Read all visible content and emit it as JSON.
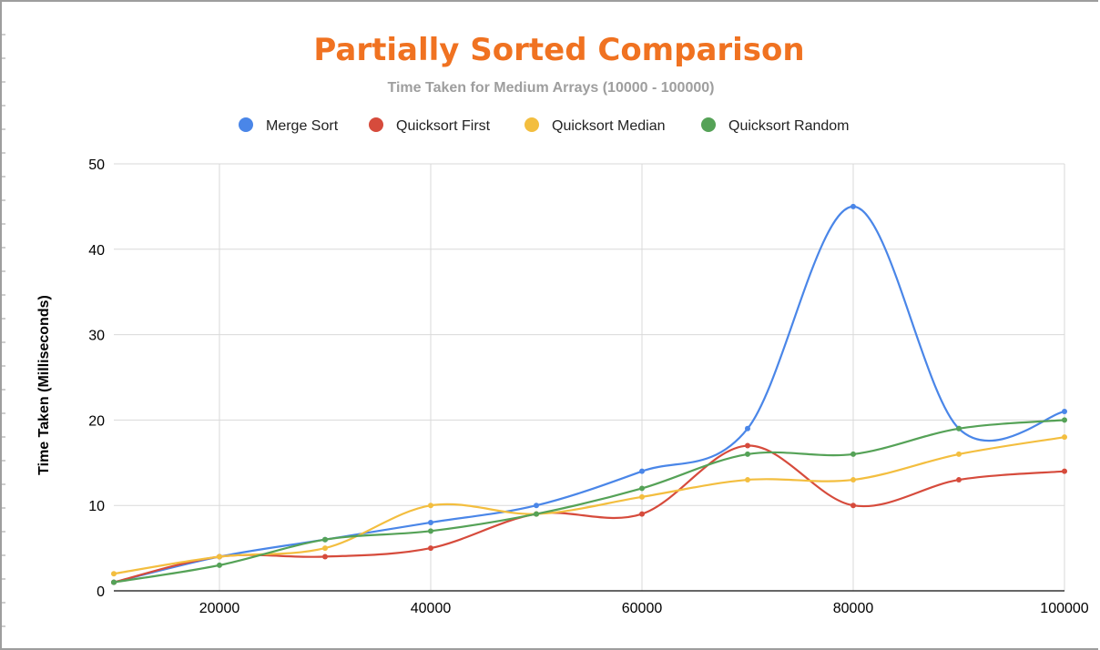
{
  "chart_data": {
    "type": "line",
    "title": "Partially Sorted Comparison",
    "subtitle": "Time Taken for Medium Arrays (10000 - 100000)",
    "ylabel": "Time Taken (Milliseconds)",
    "xlabel": "",
    "x": [
      10000,
      20000,
      30000,
      40000,
      50000,
      60000,
      70000,
      80000,
      90000,
      100000
    ],
    "xlim": [
      10000,
      100000
    ],
    "ylim": [
      0,
      50
    ],
    "x_ticks": [
      20000,
      40000,
      60000,
      80000,
      100000
    ],
    "y_ticks": [
      0,
      10,
      20,
      30,
      40,
      50
    ],
    "grid": true,
    "smooth": true,
    "legend_position": "top",
    "series": [
      {
        "name": "Merge Sort",
        "color": "#4a86e8",
        "values": [
          1,
          4,
          6,
          8,
          10,
          14,
          19,
          45,
          19,
          21
        ]
      },
      {
        "name": "Quicksort First",
        "color": "#d64b3c",
        "values": [
          1,
          4,
          4,
          5,
          9,
          9,
          17,
          10,
          13,
          14
        ]
      },
      {
        "name": "Quicksort Median",
        "color": "#f3be3f",
        "values": [
          2,
          4,
          5,
          10,
          9,
          11,
          13,
          13,
          16,
          18
        ]
      },
      {
        "name": "Quicksort Random",
        "color": "#55a257",
        "values": [
          1,
          3,
          6,
          7,
          9,
          12,
          16,
          16,
          19,
          20
        ]
      }
    ],
    "colors": {
      "title": "#f07221",
      "subtitle": "#9e9e9e",
      "grid": "#d9d9d9",
      "axis": "#333333"
    }
  }
}
